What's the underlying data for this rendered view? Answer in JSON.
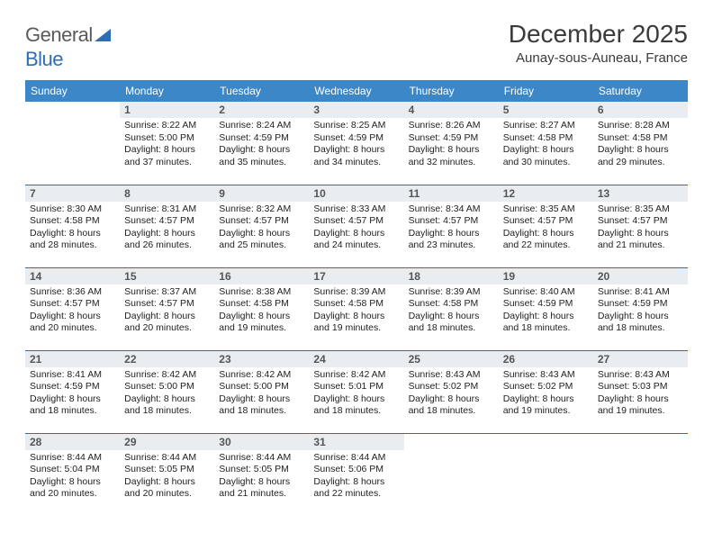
{
  "logo": {
    "general": "General",
    "blue": "Blue"
  },
  "header": {
    "title": "December 2025",
    "location": "Aunay-sous-Auneau, France"
  },
  "colors": {
    "header_bg": "#3b87c8",
    "row_divider": "#2d6fb5",
    "daynum_bg": "#e9edf1",
    "text": "#222222"
  },
  "weekdays": [
    "Sunday",
    "Monday",
    "Tuesday",
    "Wednesday",
    "Thursday",
    "Friday",
    "Saturday"
  ],
  "weeks": [
    [
      null,
      {
        "n": "1",
        "sr": "Sunrise: 8:22 AM",
        "ss": "Sunset: 5:00 PM",
        "dl": "Daylight: 8 hours and 37 minutes."
      },
      {
        "n": "2",
        "sr": "Sunrise: 8:24 AM",
        "ss": "Sunset: 4:59 PM",
        "dl": "Daylight: 8 hours and 35 minutes."
      },
      {
        "n": "3",
        "sr": "Sunrise: 8:25 AM",
        "ss": "Sunset: 4:59 PM",
        "dl": "Daylight: 8 hours and 34 minutes."
      },
      {
        "n": "4",
        "sr": "Sunrise: 8:26 AM",
        "ss": "Sunset: 4:59 PM",
        "dl": "Daylight: 8 hours and 32 minutes."
      },
      {
        "n": "5",
        "sr": "Sunrise: 8:27 AM",
        "ss": "Sunset: 4:58 PM",
        "dl": "Daylight: 8 hours and 30 minutes."
      },
      {
        "n": "6",
        "sr": "Sunrise: 8:28 AM",
        "ss": "Sunset: 4:58 PM",
        "dl": "Daylight: 8 hours and 29 minutes."
      }
    ],
    [
      {
        "n": "7",
        "sr": "Sunrise: 8:30 AM",
        "ss": "Sunset: 4:58 PM",
        "dl": "Daylight: 8 hours and 28 minutes."
      },
      {
        "n": "8",
        "sr": "Sunrise: 8:31 AM",
        "ss": "Sunset: 4:57 PM",
        "dl": "Daylight: 8 hours and 26 minutes."
      },
      {
        "n": "9",
        "sr": "Sunrise: 8:32 AM",
        "ss": "Sunset: 4:57 PM",
        "dl": "Daylight: 8 hours and 25 minutes."
      },
      {
        "n": "10",
        "sr": "Sunrise: 8:33 AM",
        "ss": "Sunset: 4:57 PM",
        "dl": "Daylight: 8 hours and 24 minutes."
      },
      {
        "n": "11",
        "sr": "Sunrise: 8:34 AM",
        "ss": "Sunset: 4:57 PM",
        "dl": "Daylight: 8 hours and 23 minutes."
      },
      {
        "n": "12",
        "sr": "Sunrise: 8:35 AM",
        "ss": "Sunset: 4:57 PM",
        "dl": "Daylight: 8 hours and 22 minutes."
      },
      {
        "n": "13",
        "sr": "Sunrise: 8:35 AM",
        "ss": "Sunset: 4:57 PM",
        "dl": "Daylight: 8 hours and 21 minutes."
      }
    ],
    [
      {
        "n": "14",
        "sr": "Sunrise: 8:36 AM",
        "ss": "Sunset: 4:57 PM",
        "dl": "Daylight: 8 hours and 20 minutes."
      },
      {
        "n": "15",
        "sr": "Sunrise: 8:37 AM",
        "ss": "Sunset: 4:57 PM",
        "dl": "Daylight: 8 hours and 20 minutes."
      },
      {
        "n": "16",
        "sr": "Sunrise: 8:38 AM",
        "ss": "Sunset: 4:58 PM",
        "dl": "Daylight: 8 hours and 19 minutes."
      },
      {
        "n": "17",
        "sr": "Sunrise: 8:39 AM",
        "ss": "Sunset: 4:58 PM",
        "dl": "Daylight: 8 hours and 19 minutes."
      },
      {
        "n": "18",
        "sr": "Sunrise: 8:39 AM",
        "ss": "Sunset: 4:58 PM",
        "dl": "Daylight: 8 hours and 18 minutes."
      },
      {
        "n": "19",
        "sr": "Sunrise: 8:40 AM",
        "ss": "Sunset: 4:59 PM",
        "dl": "Daylight: 8 hours and 18 minutes."
      },
      {
        "n": "20",
        "sr": "Sunrise: 8:41 AM",
        "ss": "Sunset: 4:59 PM",
        "dl": "Daylight: 8 hours and 18 minutes."
      }
    ],
    [
      {
        "n": "21",
        "sr": "Sunrise: 8:41 AM",
        "ss": "Sunset: 4:59 PM",
        "dl": "Daylight: 8 hours and 18 minutes."
      },
      {
        "n": "22",
        "sr": "Sunrise: 8:42 AM",
        "ss": "Sunset: 5:00 PM",
        "dl": "Daylight: 8 hours and 18 minutes."
      },
      {
        "n": "23",
        "sr": "Sunrise: 8:42 AM",
        "ss": "Sunset: 5:00 PM",
        "dl": "Daylight: 8 hours and 18 minutes."
      },
      {
        "n": "24",
        "sr": "Sunrise: 8:42 AM",
        "ss": "Sunset: 5:01 PM",
        "dl": "Daylight: 8 hours and 18 minutes."
      },
      {
        "n": "25",
        "sr": "Sunrise: 8:43 AM",
        "ss": "Sunset: 5:02 PM",
        "dl": "Daylight: 8 hours and 18 minutes."
      },
      {
        "n": "26",
        "sr": "Sunrise: 8:43 AM",
        "ss": "Sunset: 5:02 PM",
        "dl": "Daylight: 8 hours and 19 minutes."
      },
      {
        "n": "27",
        "sr": "Sunrise: 8:43 AM",
        "ss": "Sunset: 5:03 PM",
        "dl": "Daylight: 8 hours and 19 minutes."
      }
    ],
    [
      {
        "n": "28",
        "sr": "Sunrise: 8:44 AM",
        "ss": "Sunset: 5:04 PM",
        "dl": "Daylight: 8 hours and 20 minutes."
      },
      {
        "n": "29",
        "sr": "Sunrise: 8:44 AM",
        "ss": "Sunset: 5:05 PM",
        "dl": "Daylight: 8 hours and 20 minutes."
      },
      {
        "n": "30",
        "sr": "Sunrise: 8:44 AM",
        "ss": "Sunset: 5:05 PM",
        "dl": "Daylight: 8 hours and 21 minutes."
      },
      {
        "n": "31",
        "sr": "Sunrise: 8:44 AM",
        "ss": "Sunset: 5:06 PM",
        "dl": "Daylight: 8 hours and 22 minutes."
      },
      null,
      null,
      null
    ]
  ]
}
